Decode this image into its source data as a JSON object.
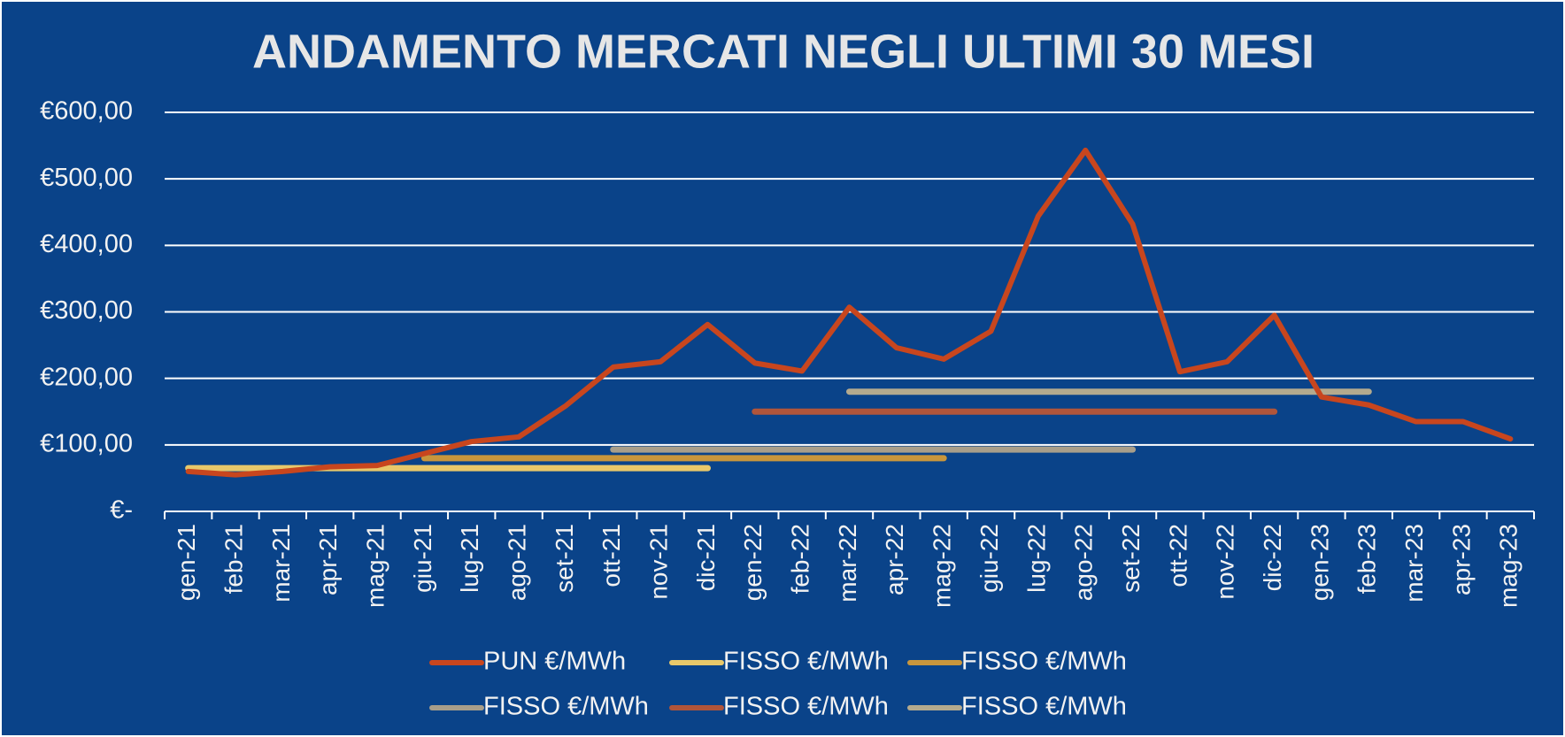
{
  "chart_data": {
    "type": "line",
    "title": "ANDAMENTO MERCATI NEGLI ULTIMI 30 MESI",
    "categories": [
      "gen-21",
      "feb-21",
      "mar-21",
      "apr-21",
      "mag-21",
      "giu-21",
      "lug-21",
      "ago-21",
      "set-21",
      "ott-21",
      "nov-21",
      "dic-21",
      "gen-22",
      "feb-22",
      "mar-22",
      "apr-22",
      "mag-22",
      "giu-22",
      "lug-22",
      "ago-22",
      "set-22",
      "ott-22",
      "nov-22",
      "dic-22",
      "gen-23",
      "feb-23",
      "mar-23",
      "apr-23",
      "mag-23"
    ],
    "series": [
      {
        "name": "PUN €/MWh",
        "color": "#c8461e",
        "values": [
          60,
          55,
          60,
          67,
          69,
          87,
          105,
          112,
          159,
          217,
          225,
          281,
          223,
          211,
          307,
          246,
          229,
          271,
          444,
          543,
          432,
          210,
          225,
          295,
          172,
          160,
          135,
          135,
          109
        ]
      },
      {
        "name": "FISSO €/MWh",
        "color": "#e8c86a",
        "values": [
          65,
          65,
          65,
          65,
          65,
          65,
          65,
          65,
          65,
          65,
          65,
          65,
          null,
          null,
          null,
          null,
          null,
          null,
          null,
          null,
          null,
          null,
          null,
          null,
          null,
          null,
          null,
          null,
          null
        ]
      },
      {
        "name": "FISSO €/MWh",
        "color": "#c8963c",
        "values": [
          null,
          null,
          null,
          null,
          null,
          80,
          80,
          80,
          80,
          80,
          80,
          80,
          80,
          80,
          80,
          80,
          80,
          null,
          null,
          null,
          null,
          null,
          null,
          null,
          null,
          null,
          null,
          null,
          null
        ]
      },
      {
        "name": "FISSO €/MWh",
        "color": "#a89e8a",
        "values": [
          null,
          null,
          null,
          null,
          null,
          null,
          null,
          null,
          null,
          93,
          93,
          93,
          93,
          93,
          93,
          93,
          93,
          93,
          93,
          93,
          93,
          null,
          null,
          null,
          null,
          null,
          null,
          null,
          null
        ]
      },
      {
        "name": "FISSO €/MWh",
        "color": "#b0553a",
        "values": [
          null,
          null,
          null,
          null,
          null,
          null,
          null,
          null,
          null,
          null,
          null,
          null,
          150,
          150,
          150,
          150,
          150,
          150,
          150,
          150,
          150,
          150,
          150,
          150,
          null,
          null,
          null,
          null,
          null
        ]
      },
      {
        "name": "FISSO €/MWh",
        "color": "#b4aa8e",
        "values": [
          null,
          null,
          null,
          null,
          null,
          null,
          null,
          null,
          null,
          null,
          null,
          null,
          null,
          null,
          180,
          180,
          180,
          180,
          180,
          180,
          180,
          180,
          180,
          180,
          180,
          180,
          null,
          null,
          null
        ]
      }
    ],
    "ylim": [
      0,
      600
    ],
    "yticks": [
      {
        "value": 0,
        "label": "€-"
      },
      {
        "value": 100,
        "label": "€100,00"
      },
      {
        "value": 200,
        "label": "€200,00"
      },
      {
        "value": 300,
        "label": "€300,00"
      },
      {
        "value": 400,
        "label": "€400,00"
      },
      {
        "value": 500,
        "label": "€500,00"
      },
      {
        "value": 600,
        "label": "€600,00"
      }
    ],
    "grid": true
  }
}
